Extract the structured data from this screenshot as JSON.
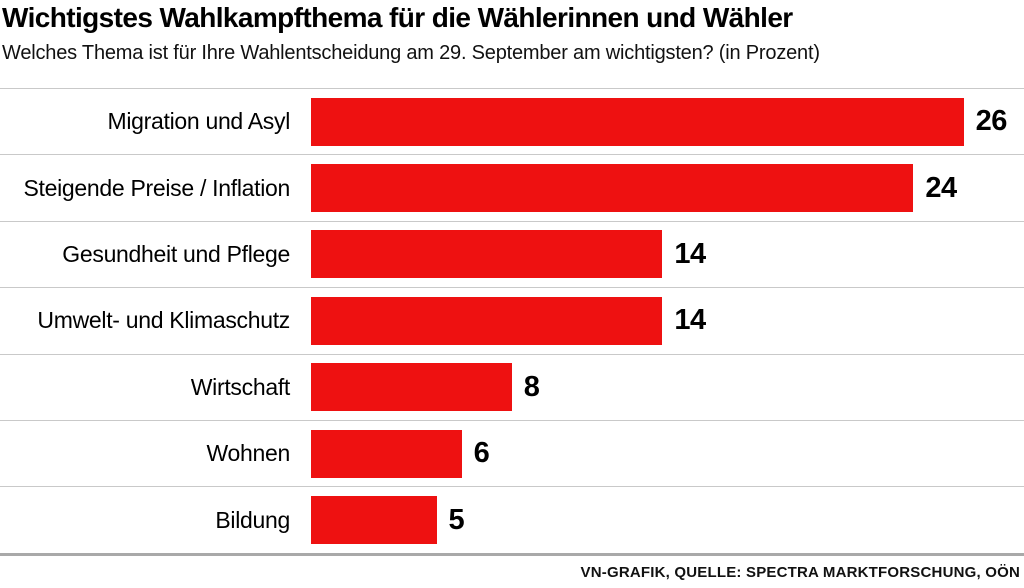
{
  "header": {
    "title": "Wichtigstes Wahlkampfthema für die Wählerinnen und Wähler",
    "subtitle": "Welches Thema ist für Ihre Wahlentscheidung am 29. September am wichtigsten? (in Prozent)"
  },
  "footer": {
    "credit": "VN-GRAFIK, QUELLE: SPECTRA MARKTFORSCHUNG, OÖN"
  },
  "chart_data": {
    "type": "bar",
    "orientation": "horizontal",
    "title": "Wichtigstes Wahlkampfthema für die Wählerinnen und Wähler",
    "subtitle": "Welches Thema ist für Ihre Wahlentscheidung am 29. September am wichtigsten? (in Prozent)",
    "unit": "Prozent",
    "categories": [
      "Migration und Asyl",
      "Steigende Preise / Inflation",
      "Gesundheit und Pflege",
      "Umwelt- und Klimaschutz",
      "Wirtschaft",
      "Wohnen",
      "Bildung"
    ],
    "values": [
      26,
      24,
      14,
      14,
      8,
      6,
      5
    ],
    "xlim": [
      0,
      26
    ],
    "bar_color": "#ee1111",
    "grid": "row-dividers",
    "legend": "none",
    "source": "VN-GRAFIK, QUELLE: SPECTRA MARKTFORSCHUNG, OÖN"
  }
}
